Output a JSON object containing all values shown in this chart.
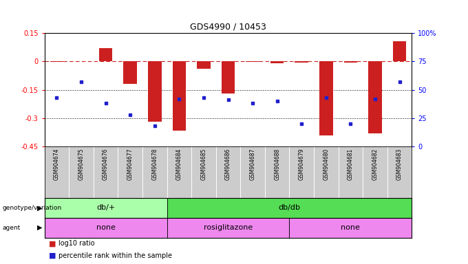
{
  "title": "GDS4990 / 10453",
  "samples": [
    "GSM904674",
    "GSM904675",
    "GSM904676",
    "GSM904677",
    "GSM904678",
    "GSM904684",
    "GSM904685",
    "GSM904686",
    "GSM904687",
    "GSM904688",
    "GSM904679",
    "GSM904680",
    "GSM904681",
    "GSM904682",
    "GSM904683"
  ],
  "log10_vals": [
    -0.001,
    0.001,
    0.07,
    -0.12,
    -0.32,
    -0.365,
    -0.04,
    -0.17,
    -0.003,
    -0.01,
    -0.005,
    -0.39,
    -0.005,
    -0.38,
    0.105
  ],
  "percentile_vals": [
    43,
    57,
    38,
    28,
    18,
    42,
    43,
    41,
    38,
    40,
    20,
    43,
    20,
    42,
    57
  ],
  "ylim_left": [
    -0.45,
    0.15
  ],
  "ylim_right": [
    0,
    100
  ],
  "yticks_left": [
    -0.45,
    -0.3,
    -0.15,
    0.0,
    0.15
  ],
  "ytick_labels_left": [
    "-0.45",
    "-0.3",
    "-0.15",
    "0",
    "0.15"
  ],
  "yticks_right": [
    0,
    25,
    50,
    75,
    100
  ],
  "ytick_labels_right": [
    "0",
    "25",
    "50",
    "75",
    "100%"
  ],
  "hline_dotted": [
    -0.15,
    -0.3
  ],
  "bar_color": "#cc2020",
  "dot_color": "#2020cc",
  "dashed_color": "#cc2020",
  "geno_groups": [
    {
      "label": "db/+",
      "start": 0,
      "end": 4,
      "color": "#aaffaa"
    },
    {
      "label": "db/db",
      "start": 5,
      "end": 14,
      "color": "#55dd55"
    }
  ],
  "agent_groups": [
    {
      "label": "none",
      "start": 0,
      "end": 4,
      "color": "#ee88ee"
    },
    {
      "label": "rosiglitazone",
      "start": 5,
      "end": 9,
      "color": "#ee88ee"
    },
    {
      "label": "none",
      "start": 10,
      "end": 14,
      "color": "#ee88ee"
    }
  ],
  "background_color": "#ffffff"
}
